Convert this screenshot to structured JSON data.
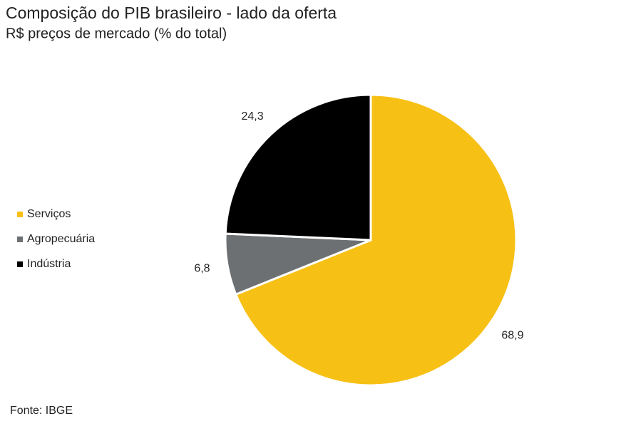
{
  "chart_data": {
    "type": "pie",
    "title": "Composição do PIB brasileiro - lado da oferta",
    "subtitle": "R$ preços de mercado (% do total)",
    "source": "Fonte: IBGE",
    "categories": [
      "Serviços",
      "Agropecuária",
      "Indústria"
    ],
    "values": [
      68.9,
      6.8,
      24.3
    ],
    "value_labels": [
      "68,9",
      "6,8",
      "24,3"
    ],
    "colors": [
      "#f7c015",
      "#6d7072",
      "#000000"
    ],
    "legend": "left"
  }
}
